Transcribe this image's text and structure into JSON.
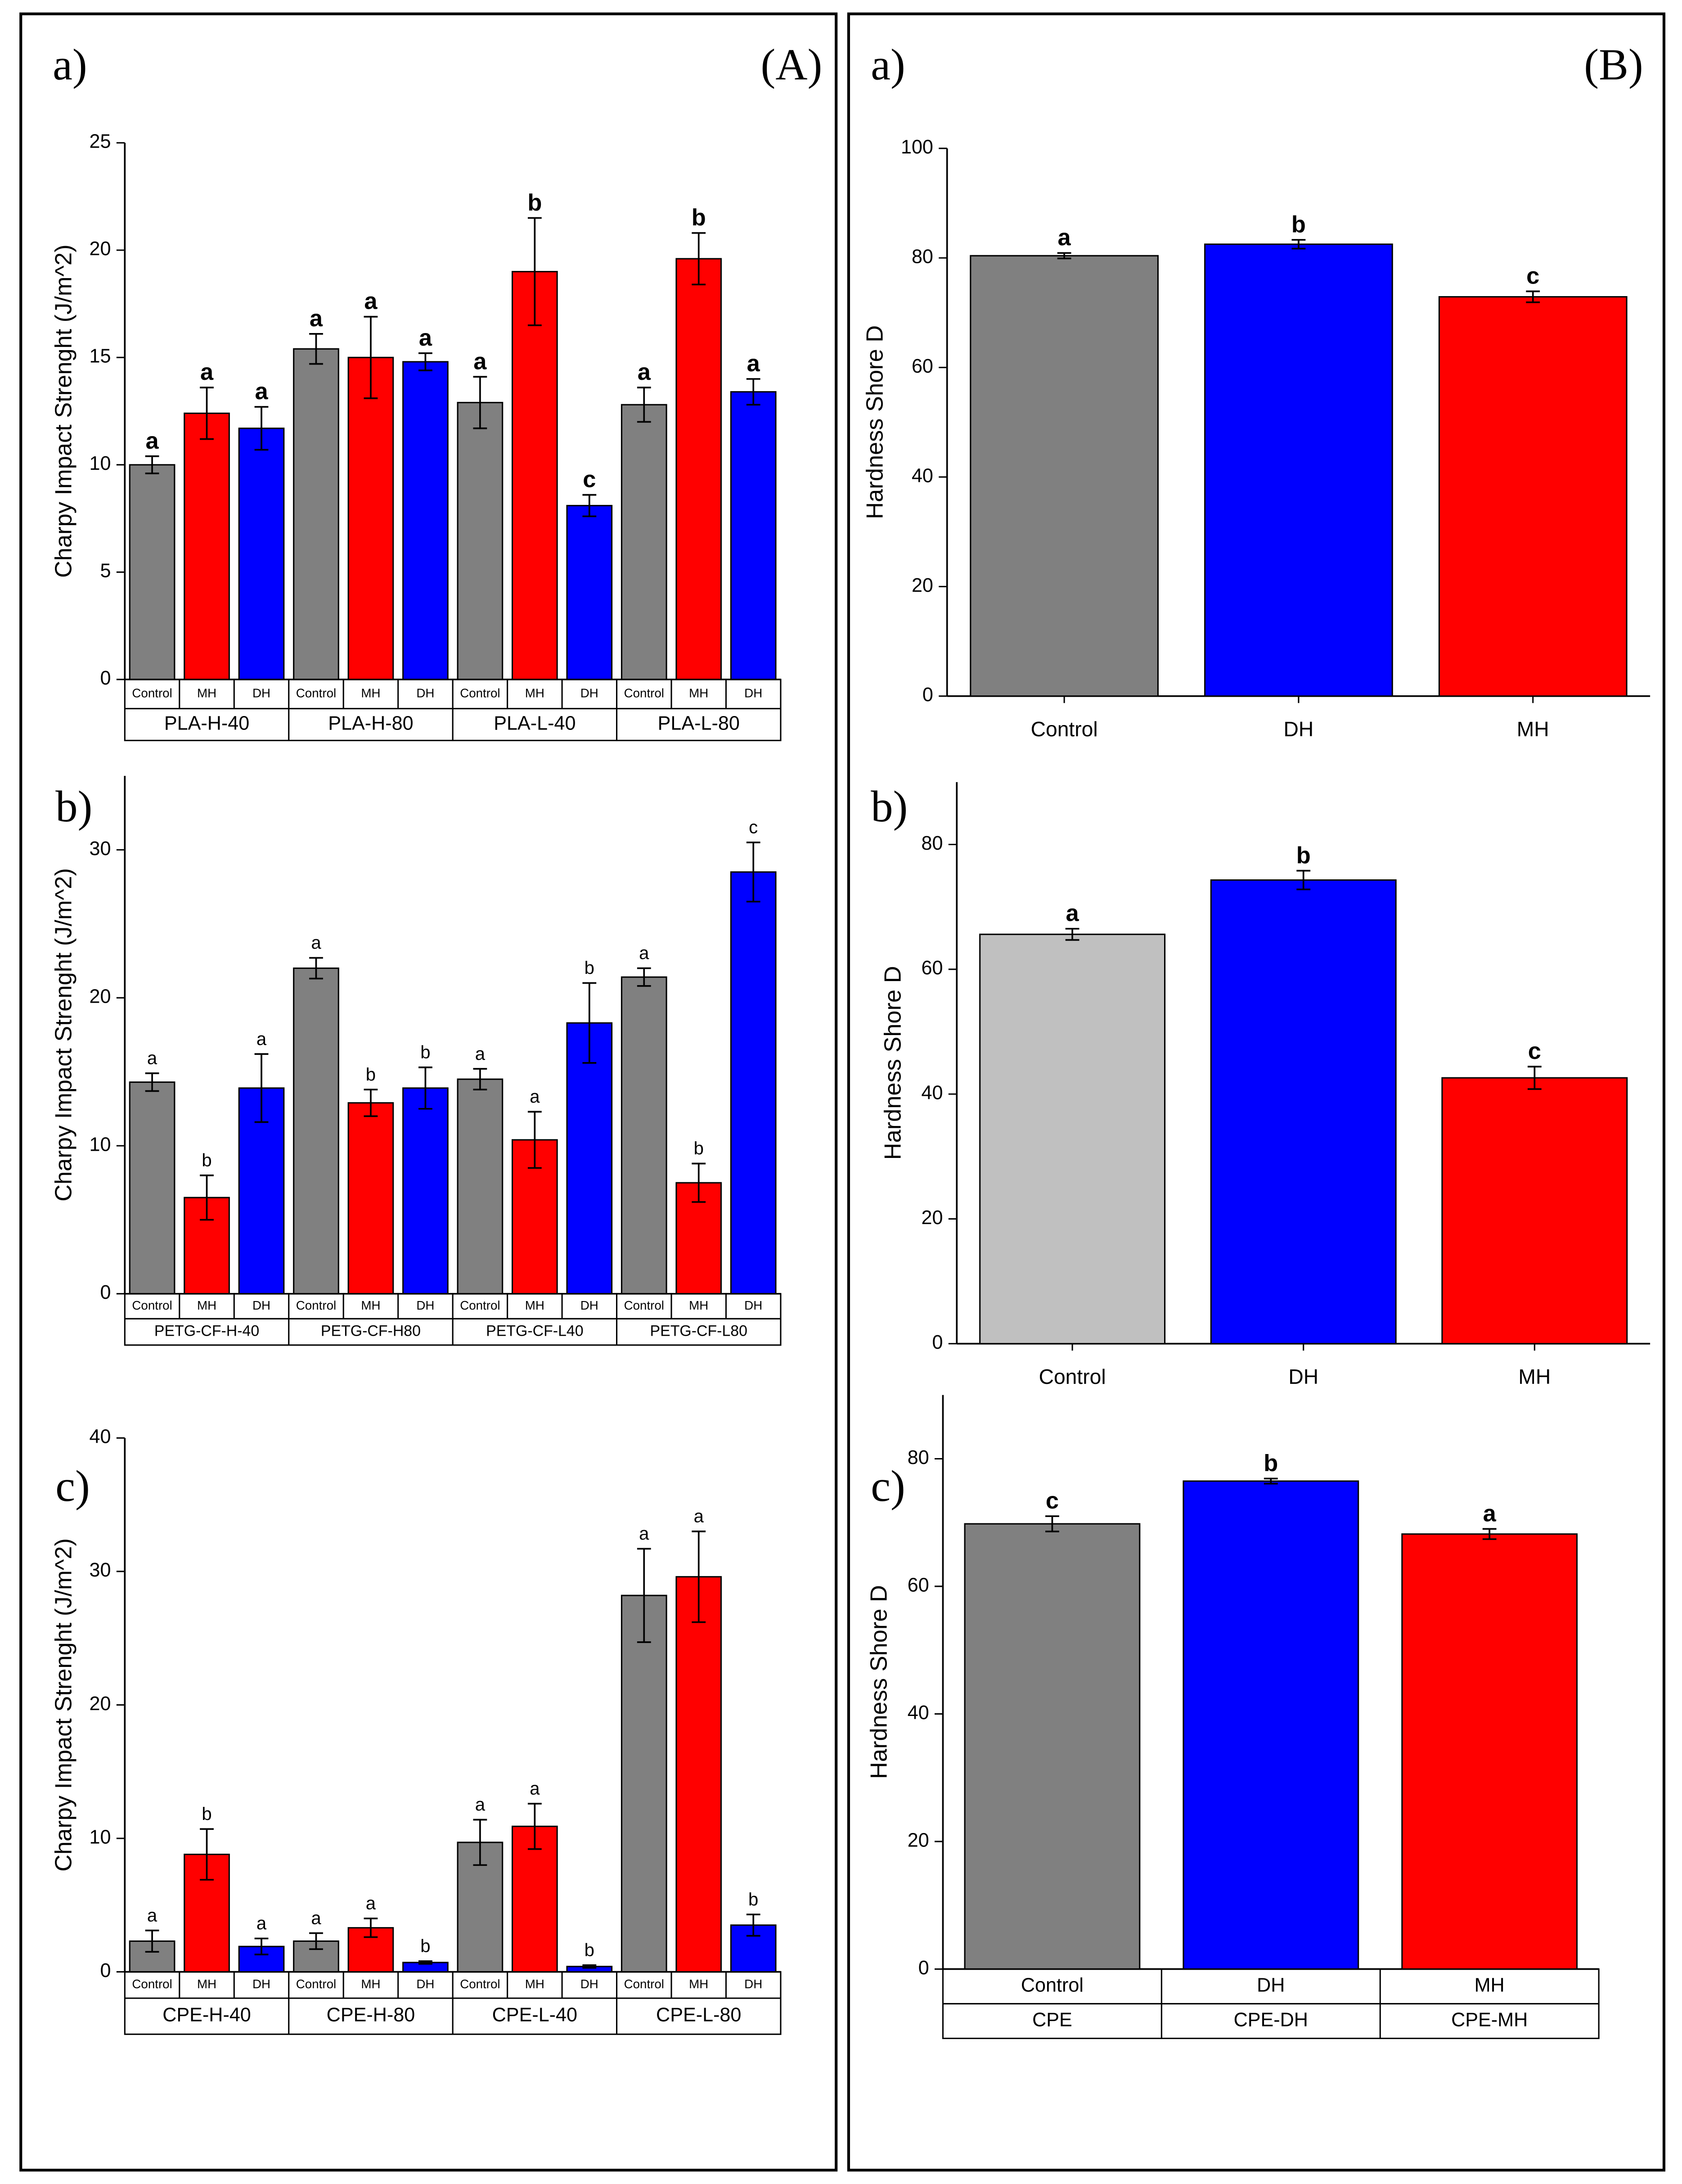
{
  "panels": [
    "(A)",
    "(B)"
  ],
  "chart_data": [
    {
      "type": "bar",
      "panel_label": "a)",
      "ylabel": "Charpy Impact Strenght (J/m^2)",
      "ylim": [
        0,
        25
      ],
      "yticks": [
        0,
        5,
        10,
        15,
        20,
        25
      ],
      "groups": [
        "PLA-H-40",
        "PLA-H-80",
        "PLA-L-40",
        "PLA-L-80"
      ],
      "categories": [
        "Control",
        "MH",
        "DH",
        "Control",
        "MH",
        "DH",
        "Control",
        "MH",
        "DH",
        "Control",
        "MH",
        "DH"
      ],
      "values": [
        10.0,
        12.4,
        11.7,
        15.4,
        15.0,
        14.8,
        12.9,
        19.0,
        8.1,
        12.8,
        19.6,
        13.4
      ],
      "errors": [
        0.4,
        1.2,
        1.0,
        0.7,
        1.9,
        0.4,
        1.2,
        2.5,
        0.5,
        0.8,
        1.2,
        0.6
      ],
      "letters": [
        "a",
        "a",
        "a",
        "a",
        "a",
        "a",
        "a",
        "b",
        "c",
        "a",
        "b",
        "a"
      ],
      "colors": [
        "#808080",
        "#ff0000",
        "#0000ff",
        "#808080",
        "#ff0000",
        "#0000ff",
        "#808080",
        "#ff0000",
        "#0000ff",
        "#808080",
        "#ff0000",
        "#0000ff"
      ]
    },
    {
      "type": "bar",
      "panel_label": "b)",
      "ylabel": "Charpy Impact Strenght (J/m^2)",
      "ylim": [
        0,
        35
      ],
      "yticks": [
        0,
        10,
        20,
        30
      ],
      "groups": [
        "PETG-CF-H-40",
        "PETG-CF-H80",
        "PETG-CF-L40",
        "PETG-CF-L80"
      ],
      "categories": [
        "Control",
        "MH",
        "DH",
        "Control",
        "MH",
        "DH",
        "Control",
        "MH",
        "DH",
        "Control",
        "MH",
        "DH"
      ],
      "values": [
        14.3,
        6.5,
        13.9,
        22.0,
        12.9,
        13.9,
        14.5,
        10.4,
        18.3,
        21.4,
        7.5,
        28.5
      ],
      "errors": [
        0.6,
        1.5,
        2.3,
        0.7,
        0.9,
        1.4,
        0.7,
        1.9,
        2.7,
        0.6,
        1.3,
        2.0
      ],
      "letters": [
        "a",
        "b",
        "a",
        "a",
        "b",
        "b",
        "a",
        "a",
        "b",
        "a",
        "b",
        "c"
      ],
      "colors": [
        "#808080",
        "#ff0000",
        "#0000ff",
        "#808080",
        "#ff0000",
        "#0000ff",
        "#808080",
        "#ff0000",
        "#0000ff",
        "#808080",
        "#ff0000",
        "#0000ff"
      ]
    },
    {
      "type": "bar",
      "panel_label": "c)",
      "ylabel": "Charpy Impact Strenght (J/m^2)",
      "ylim": [
        0,
        40
      ],
      "yticks": [
        0,
        10,
        20,
        30,
        40
      ],
      "groups": [
        "CPE-H-40",
        "CPE-H-80",
        "CPE-L-40",
        "CPE-L-80"
      ],
      "categories": [
        "Control",
        "MH",
        "DH",
        "Control",
        "MH",
        "DH",
        "Control",
        "MH",
        "DH",
        "Control",
        "MH",
        "DH"
      ],
      "values": [
        2.3,
        8.8,
        1.9,
        2.3,
        3.3,
        0.7,
        9.7,
        10.9,
        0.4,
        28.2,
        29.6,
        3.5
      ],
      "errors": [
        0.8,
        1.9,
        0.6,
        0.6,
        0.7,
        0.1,
        1.7,
        1.7,
        0.1,
        3.5,
        3.4,
        0.8
      ],
      "letters": [
        "a",
        "b",
        "a",
        "a",
        "a",
        "b",
        "a",
        "a",
        "b",
        "a",
        "a",
        "b"
      ],
      "colors": [
        "#808080",
        "#ff0000",
        "#0000ff",
        "#808080",
        "#ff0000",
        "#0000ff",
        "#808080",
        "#ff0000",
        "#0000ff",
        "#808080",
        "#ff0000",
        "#0000ff"
      ]
    },
    {
      "type": "bar",
      "panel_label": "a)",
      "ylabel": "Hardness Shore D",
      "ylim": [
        0,
        100
      ],
      "yticks": [
        0,
        20,
        40,
        60,
        80,
        100
      ],
      "categories": [
        "Control",
        "DH",
        "MH"
      ],
      "values": [
        80.4,
        82.5,
        72.9
      ],
      "errors": [
        0.5,
        0.8,
        1.0
      ],
      "letters": [
        "a",
        "b",
        "c"
      ],
      "colors": [
        "#808080",
        "#0000ff",
        "#ff0000"
      ]
    },
    {
      "type": "bar",
      "panel_label": "b)",
      "ylabel": "Hardness Shore D",
      "ylim": [
        0,
        90
      ],
      "yticks": [
        0,
        20,
        40,
        60,
        80
      ],
      "categories": [
        "Control",
        "DH",
        "MH"
      ],
      "values": [
        65.6,
        74.3,
        42.6
      ],
      "errors": [
        0.9,
        1.5,
        1.8
      ],
      "letters": [
        "a",
        "b",
        "c"
      ],
      "colors": [
        "#c0c0c0",
        "#0000ff",
        "#ff0000"
      ]
    },
    {
      "type": "bar",
      "panel_label": "c)",
      "ylabel": "Hardness Shore D",
      "ylim": [
        0,
        90
      ],
      "yticks": [
        0,
        20,
        40,
        60,
        80
      ],
      "groups": [
        "CPE",
        "CPE-DH",
        "CPE-MH"
      ],
      "categories": [
        "Control",
        "DH",
        "MH"
      ],
      "values": [
        69.8,
        76.5,
        68.2
      ],
      "errors": [
        1.2,
        0.4,
        0.8
      ],
      "letters": [
        "c",
        "b",
        "a"
      ],
      "colors": [
        "#808080",
        "#0000ff",
        "#ff0000"
      ]
    }
  ]
}
